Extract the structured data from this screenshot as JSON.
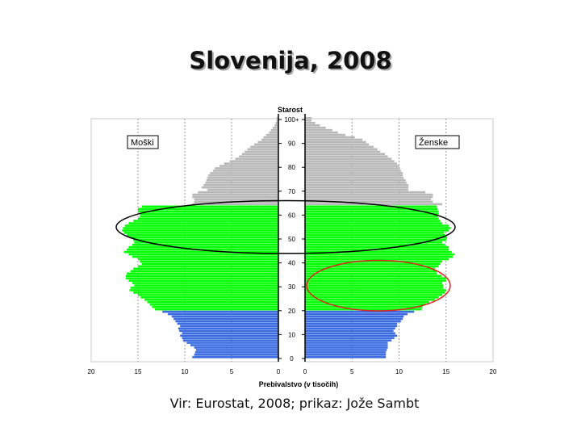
{
  "slide": {
    "title": "Slovenija, 2008",
    "caption": "Vir: Eurostat, 2008; prikaz: Jože Sambt"
  },
  "chart_data": {
    "type": "bar",
    "orientation": "horizontal",
    "subtype": "population-pyramid",
    "age_axis_label": "Starost",
    "age_ticks": [
      "0",
      "10",
      "20",
      "30",
      "40",
      "50",
      "60",
      "70",
      "80",
      "90",
      "100+"
    ],
    "x_axis_label": "Prebivalstvo (v tisočih)",
    "left_ticks": [
      "20",
      "15",
      "10",
      "5",
      "0"
    ],
    "right_ticks": [
      "0",
      "5",
      "10",
      "15",
      "20"
    ],
    "xlim": [
      0,
      20
    ],
    "grid": "vertical",
    "legend": {
      "left": "Moški",
      "right": "Ženske"
    },
    "age_groups": [
      {
        "from": 0,
        "to": 19,
        "color": "#3a6be0"
      },
      {
        "from": 20,
        "to": 63,
        "color": "#00ff00"
      },
      {
        "from": 64,
        "to": 100,
        "color": "#b8b8b8"
      }
    ],
    "highlights": [
      {
        "side": "both",
        "age_from": 48,
        "age_to": 62,
        "color": "#000000"
      },
      {
        "side": "right",
        "age_from": 24,
        "age_to": 37,
        "color": "#dd2222"
      }
    ],
    "series": [
      {
        "name": "Moški",
        "side": "left",
        "values": [
          9.2,
          9.0,
          8.9,
          8.8,
          9.0,
          9.4,
          9.8,
          10.2,
          10.3,
          10.5,
          10.3,
          10.6,
          10.7,
          10.5,
          10.8,
          11.0,
          11.2,
          11.4,
          11.8,
          12.4,
          13.2,
          13.5,
          13.7,
          14.0,
          14.3,
          14.7,
          15.0,
          15.5,
          15.9,
          15.8,
          15.4,
          15.6,
          16.0,
          16.3,
          16.3,
          16.2,
          15.8,
          15.5,
          15.0,
          14.6,
          14.8,
          15.0,
          15.6,
          16.0,
          16.5,
          16.2,
          16.0,
          15.6,
          15.4,
          15.5,
          15.8,
          16.2,
          16.5,
          16.7,
          16.6,
          16.4,
          16.0,
          15.5,
          15.0,
          14.8,
          14.8,
          15.0,
          15.0,
          14.6,
          9.2,
          9.0,
          9.0,
          9.2,
          9.2,
          8.6,
          7.6,
          8.2,
          8.0,
          7.8,
          7.7,
          7.6,
          7.5,
          7.3,
          7.0,
          6.8,
          6.3,
          5.8,
          5.2,
          4.6,
          4.2,
          3.9,
          3.6,
          3.3,
          3.0,
          2.6,
          2.2,
          1.8,
          1.6,
          1.3,
          1.0,
          0.8,
          0.6,
          0.4,
          0.3,
          0.2,
          0.2
        ]
      },
      {
        "name": "Ženske",
        "side": "right",
        "values": [
          8.6,
          8.6,
          8.6,
          8.7,
          8.8,
          8.8,
          8.8,
          9.2,
          9.5,
          9.8,
          9.6,
          9.4,
          9.6,
          9.8,
          9.8,
          10.2,
          10.4,
          10.5,
          10.9,
          11.6,
          12.4,
          12.5,
          12.8,
          13.2,
          13.8,
          14.2,
          14.6,
          14.9,
          15.0,
          14.7,
          14.7,
          14.6,
          15.0,
          15.0,
          14.5,
          14.0,
          14.0,
          13.8,
          14.2,
          14.4,
          14.6,
          15.3,
          15.7,
          15.9,
          15.6,
          15.3,
          15.3,
          14.9,
          14.6,
          15.0,
          15.1,
          14.9,
          14.8,
          15.3,
          15.5,
          15.3,
          14.6,
          14.4,
          14.2,
          14.1,
          14.2,
          14.2,
          14.1,
          14.0,
          14.6,
          13.6,
          13.4,
          13.6,
          13.6,
          12.8,
          11.0,
          11.0,
          11.0,
          10.8,
          10.7,
          10.5,
          10.4,
          10.4,
          10.2,
          10.1,
          10.0,
          9.8,
          9.5,
          9.2,
          8.8,
          8.5,
          8.0,
          7.7,
          7.3,
          6.8,
          6.5,
          6.1,
          5.3,
          4.3,
          3.5,
          2.9,
          2.2,
          1.6,
          1.1,
          0.7,
          0.7
        ]
      }
    ]
  }
}
